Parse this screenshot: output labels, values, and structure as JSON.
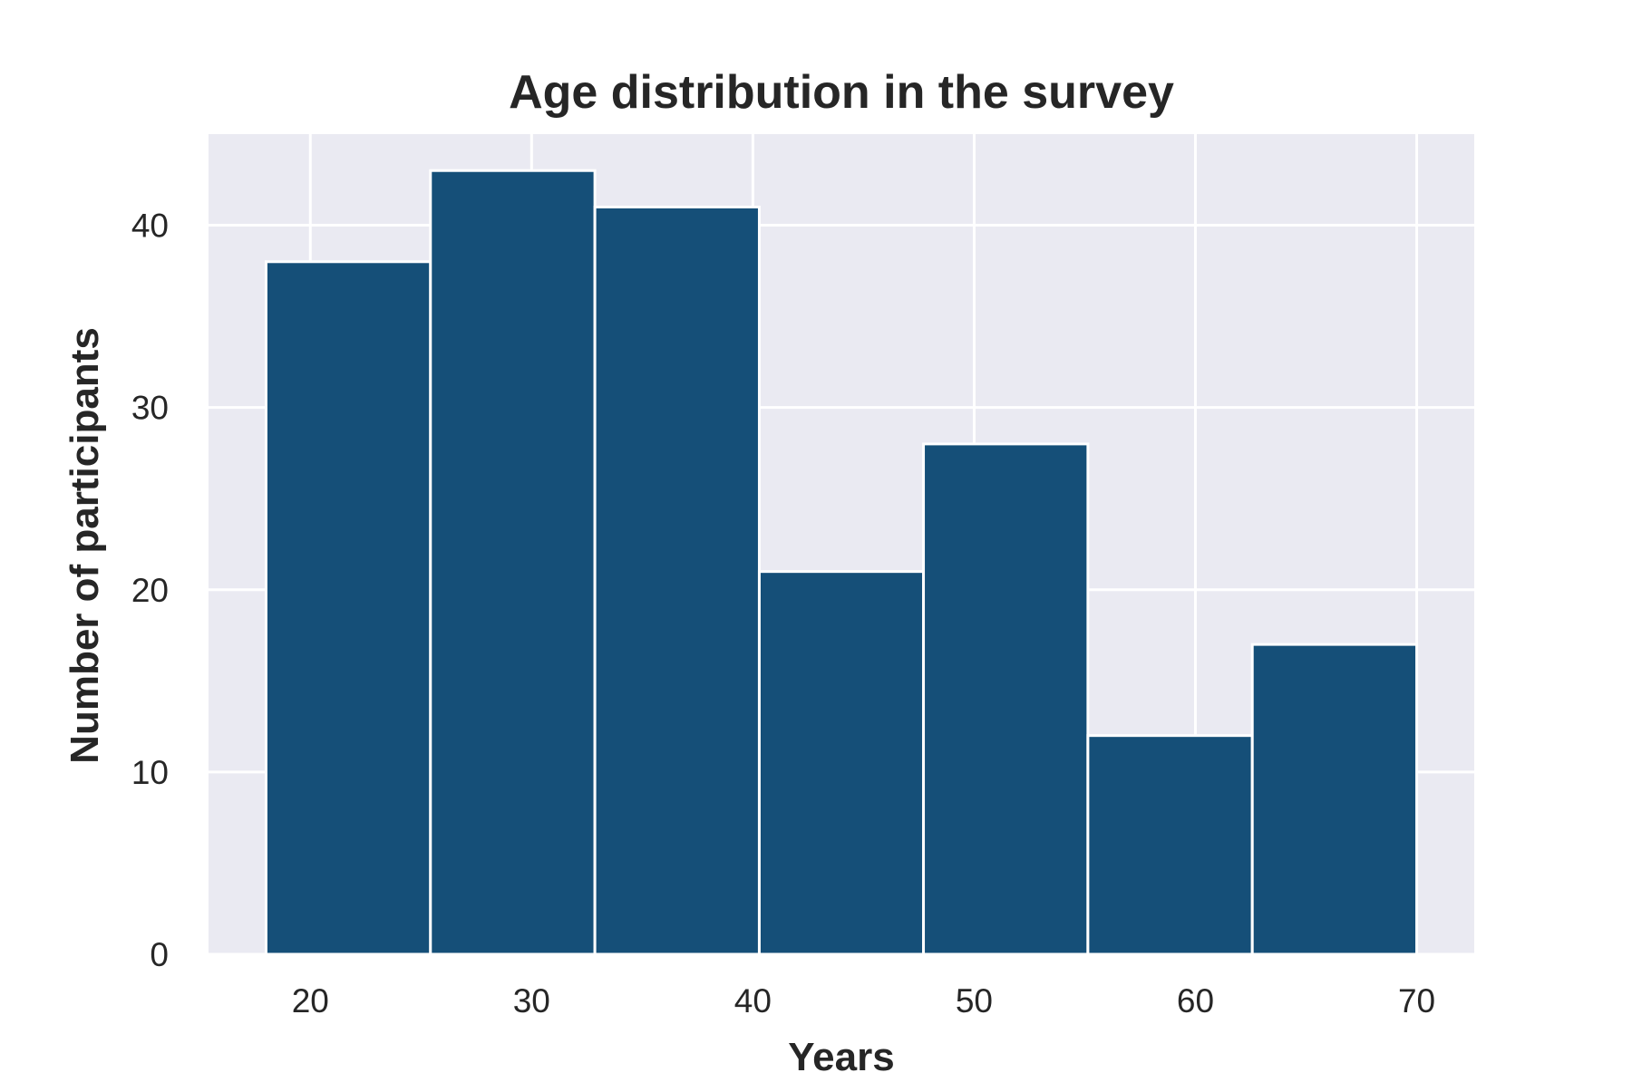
{
  "chart_data": {
    "type": "bar",
    "subtype": "histogram",
    "title": "Age distribution in the survey",
    "xlabel": "Years",
    "ylabel": "Number of participants",
    "bins": [
      {
        "start": 18,
        "end": 25.43,
        "value": 38
      },
      {
        "start": 25.43,
        "end": 32.86,
        "value": 43
      },
      {
        "start": 32.86,
        "end": 40.29,
        "value": 41
      },
      {
        "start": 40.29,
        "end": 47.71,
        "value": 21
      },
      {
        "start": 47.71,
        "end": 55.14,
        "value": 28
      },
      {
        "start": 55.14,
        "end": 62.57,
        "value": 12
      },
      {
        "start": 62.57,
        "end": 70,
        "value": 17
      }
    ],
    "xlim": [
      15.4,
      72.6
    ],
    "ylim": [
      0,
      45
    ],
    "xticks": [
      20,
      30,
      40,
      50,
      60,
      70
    ],
    "yticks": [
      0,
      10,
      20,
      30,
      40
    ],
    "grid": true,
    "colors": {
      "bar": "#154f78",
      "background": "#eaeaf2",
      "grid": "#ffffff",
      "bar_edge": "#ffffff"
    }
  }
}
